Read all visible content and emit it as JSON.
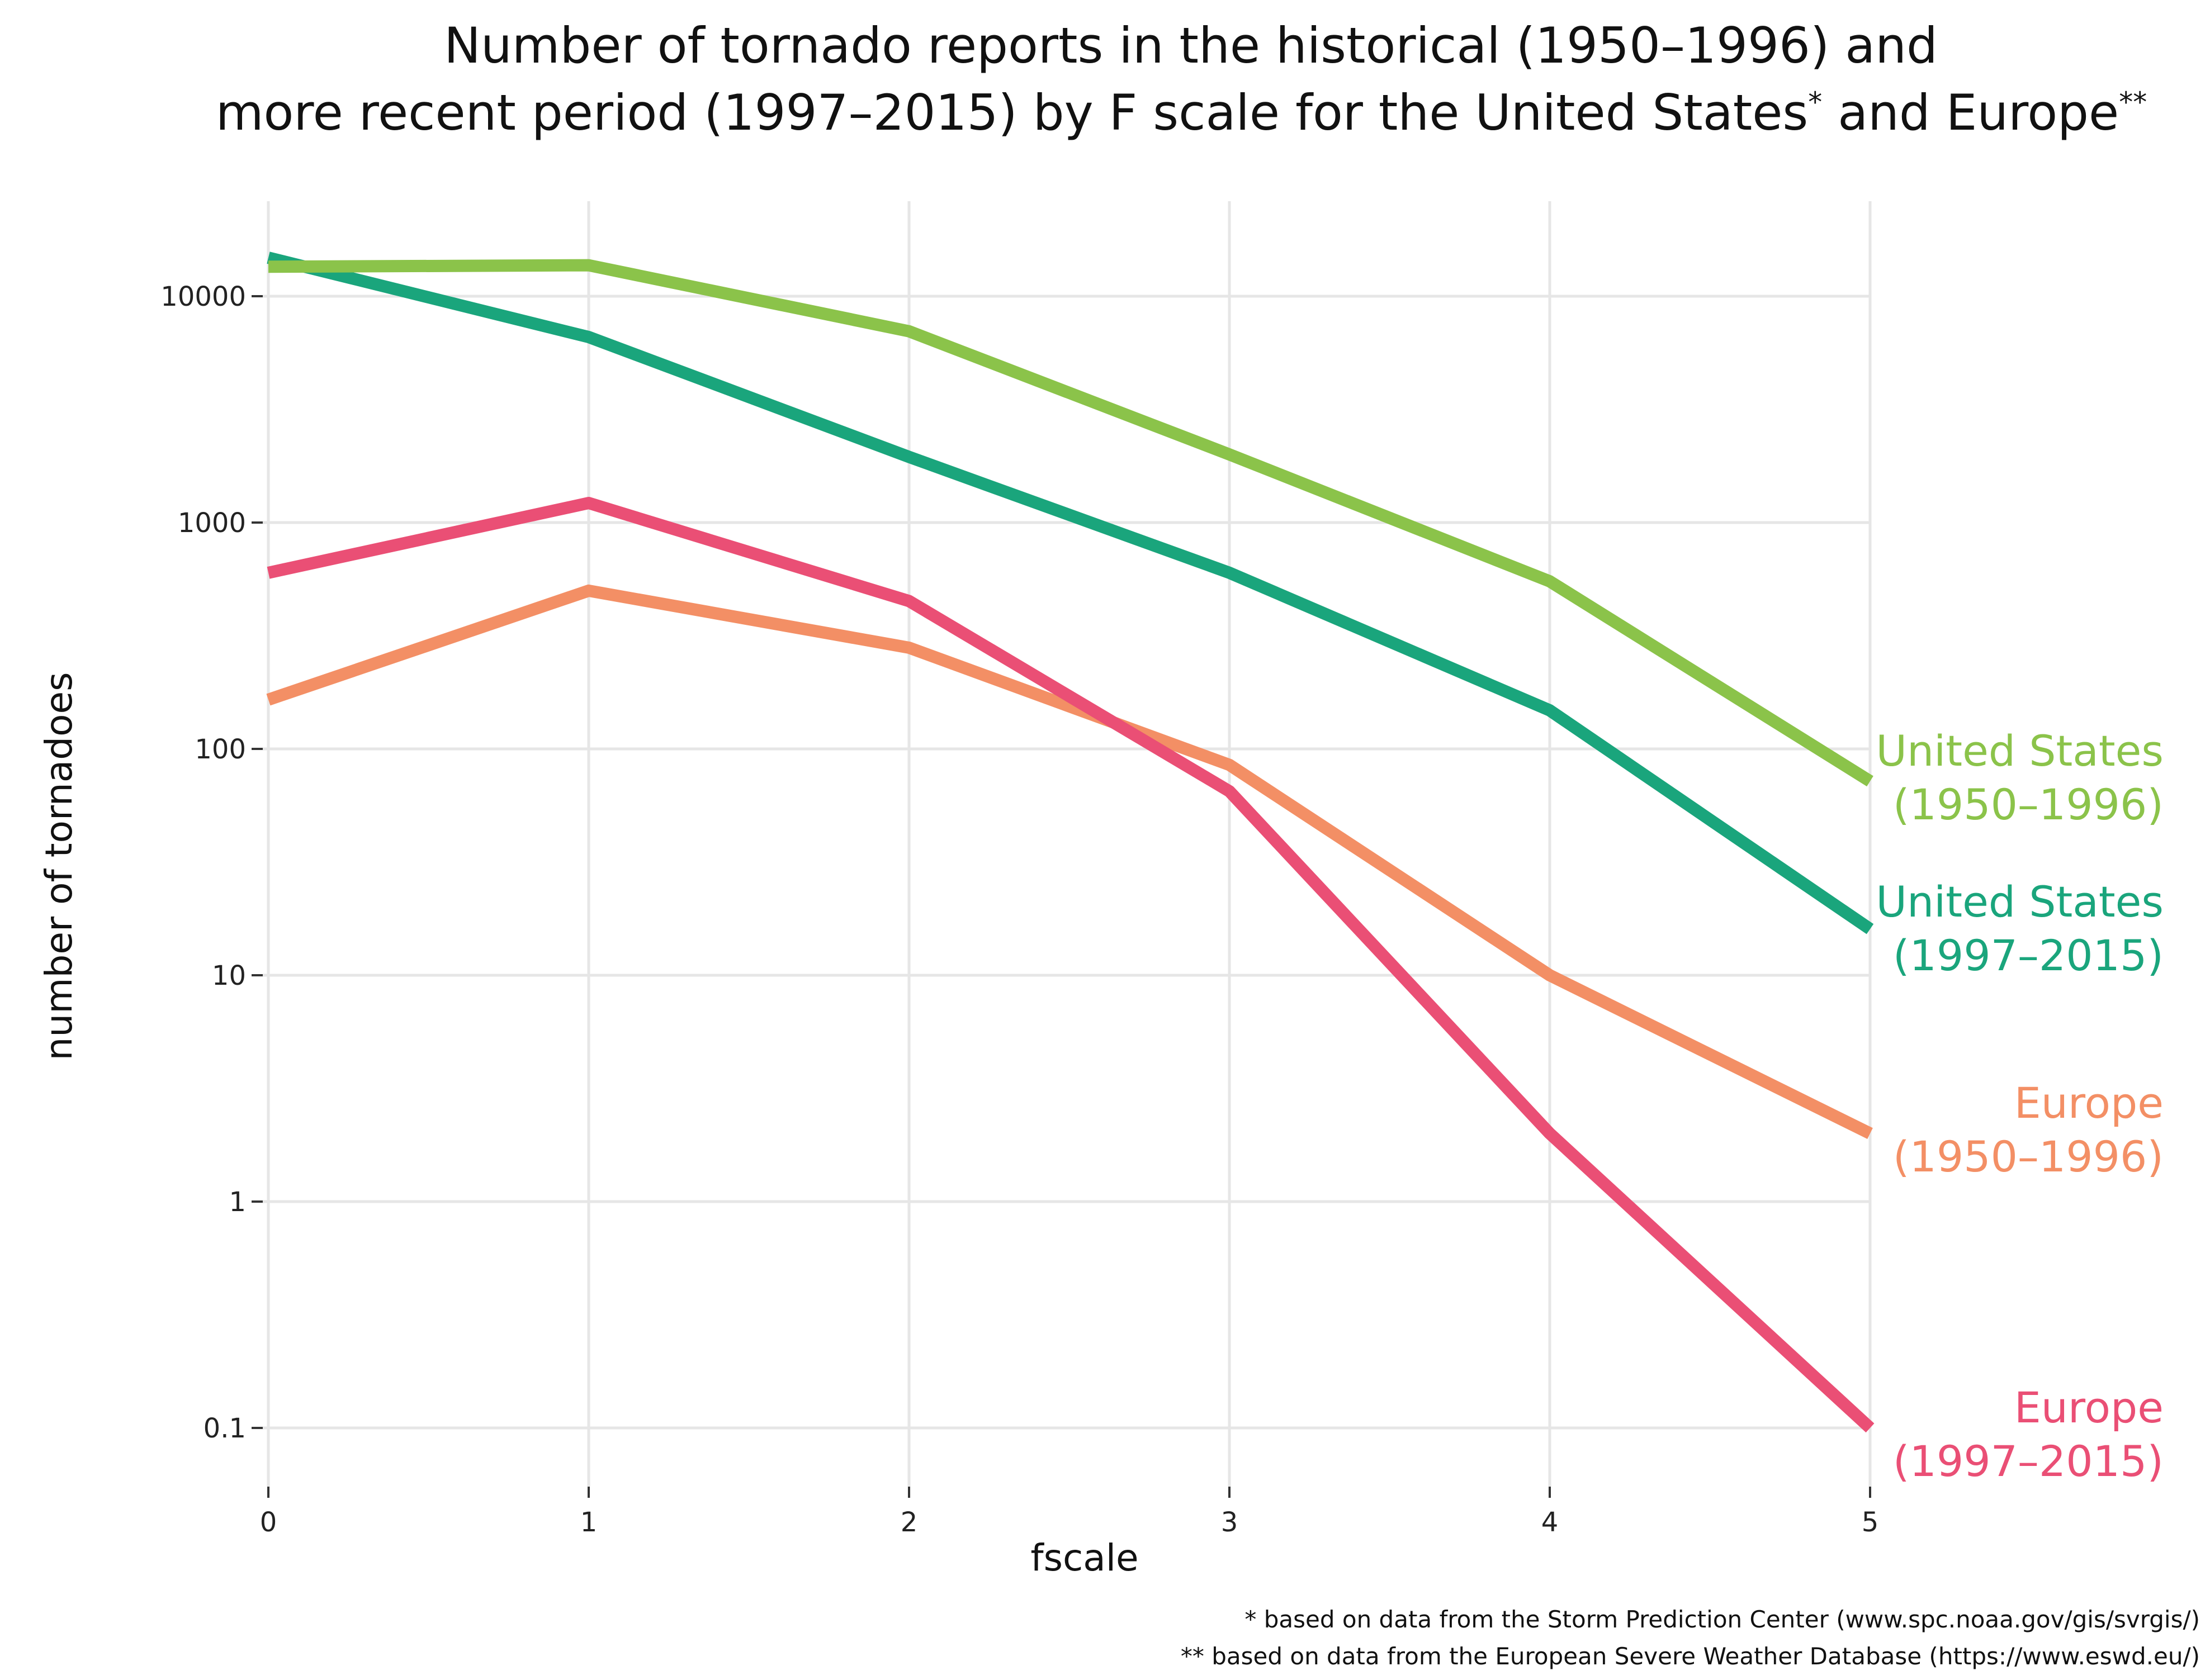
{
  "chart_data": {
    "type": "line",
    "title_lines": [
      "Number of tornado reports in the historical (1950–1996) and",
      "more recent period (1997–2015) by F scale for the United States",
      "*",
      " and Europe",
      "**"
    ],
    "xlabel": "fscale",
    "ylabel": "number of tornadoes",
    "x": [
      0,
      1,
      2,
      3,
      4,
      5
    ],
    "x_ticks": [
      "0",
      "1",
      "2",
      "3",
      "4",
      "5"
    ],
    "y_scale": "log",
    "y_ticks": [
      {
        "value": 10000,
        "label": "10000"
      },
      {
        "value": 1000,
        "label": "1000"
      },
      {
        "value": 100,
        "label": "100"
      },
      {
        "value": 10,
        "label": "10"
      },
      {
        "value": 1,
        "label": "1"
      },
      {
        "value": 0.1,
        "label": "0.1"
      }
    ],
    "xlim": [
      0,
      5
    ],
    "ylim": [
      0.07,
      25000
    ],
    "grid": true,
    "legend": "direct labels at right end of lines",
    "series": [
      {
        "name": "United States (1950–1996)",
        "label_lines": [
          "United States",
          "(1950–1996)"
        ],
        "color": "#8bc34a",
        "values": [
          13500,
          13700,
          7000,
          2000,
          550,
          72
        ]
      },
      {
        "name": "United States (1997–2015)",
        "label_lines": [
          "United States",
          "(1997–2015)"
        ],
        "color": "#1aa57c",
        "values": [
          14800,
          6600,
          1950,
          600,
          148,
          16
        ]
      },
      {
        "name": "Europe (1950–1996)",
        "label_lines": [
          "Europe",
          "(1950–1996)"
        ],
        "color": "#f38f65",
        "values": [
          165,
          500,
          280,
          85,
          10,
          2
        ]
      },
      {
        "name": "Europe (1997–2015)",
        "label_lines": [
          "Europe",
          "(1997–2015)"
        ],
        "color": "#ea4f75",
        "values": [
          600,
          1220,
          450,
          65,
          2,
          0.1
        ]
      }
    ],
    "footnotes": [
      "* based on data from the Storm Prediction Center (www.spc.noaa.gov/gis/svrgis/)",
      "** based on data from the European Severe Weather Database (https://www.eswd.eu/)"
    ]
  }
}
